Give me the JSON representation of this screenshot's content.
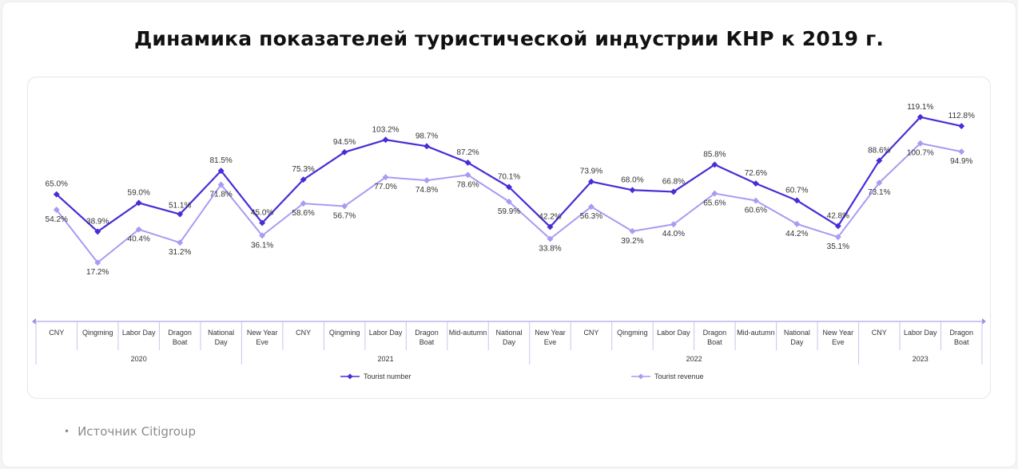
{
  "title": "Динамика показателей туристической индустрии КНР к 2019 г.",
  "source": "Источник Citigroup",
  "colors": {
    "tourist_number": "#4b2bd6",
    "tourist_revenue": "#a99bf2",
    "axis": "#9a92e0"
  },
  "chart_data": {
    "type": "line",
    "categories": [
      "CNY",
      "Qingming",
      "Labor Day",
      "Dragon Boat",
      "National Day",
      "New Year Eve",
      "CNY",
      "Qingming",
      "Labor Day",
      "Dragon Boat",
      "Mid-autumn",
      "National Day",
      "New Year Eve",
      "CNY",
      "Qingming",
      "Labor Day",
      "Dragon Boat",
      "Mid-autumn",
      "National Day",
      "New Year Eve",
      "CNY",
      "Labor Day",
      "Dragon Boat"
    ],
    "year_groups": [
      {
        "label": "2020",
        "count": 5
      },
      {
        "label": "2021",
        "count": 7
      },
      {
        "label": "2022",
        "count": 8
      },
      {
        "label": "2023",
        "count": 3
      }
    ],
    "series": [
      {
        "name": "Tourist number",
        "values": [
          65.0,
          38.9,
          59.0,
          51.1,
          81.5,
          45.0,
          75.3,
          94.5,
          103.2,
          98.7,
          87.2,
          70.1,
          42.2,
          73.9,
          68.0,
          66.8,
          85.8,
          72.6,
          60.7,
          42.8,
          88.6,
          119.1,
          112.8
        ],
        "labels": [
          "65.0%",
          "38.9%",
          "59.0%",
          "51.1%",
          "81.5%",
          "45.0%",
          "75.3%",
          "94.5%",
          "103.2%",
          "98.7%",
          "87.2%",
          "70.1%",
          "42.2%",
          "73.9%",
          "68.0%",
          "66.8%",
          "85.8%",
          "72.6%",
          "60.7%",
          "42.8%",
          "88.6%",
          "119.1%",
          "112.8%"
        ]
      },
      {
        "name": "Tourist revenue",
        "values": [
          54.2,
          17.2,
          40.4,
          31.2,
          71.8,
          36.1,
          58.6,
          56.7,
          77.0,
          74.8,
          78.6,
          59.9,
          33.8,
          56.3,
          39.2,
          44.0,
          65.6,
          60.6,
          44.2,
          35.1,
          73.1,
          100.7,
          94.9
        ],
        "labels": [
          "54.2%",
          "17.2%",
          "40.4%",
          "31.2%",
          "71.8%",
          "36.1%",
          "58.6%",
          "56.7%",
          "77.0%",
          "74.8%",
          "78.6%",
          "59.9%",
          "33.8%",
          "56.3%",
          "39.2%",
          "44.0%",
          "65.6%",
          "60.6%",
          "44.2%",
          "35.1%",
          "73.1%",
          "100.7%",
          "94.9%"
        ]
      }
    ],
    "legend_position": "bottom",
    "grid": false
  }
}
